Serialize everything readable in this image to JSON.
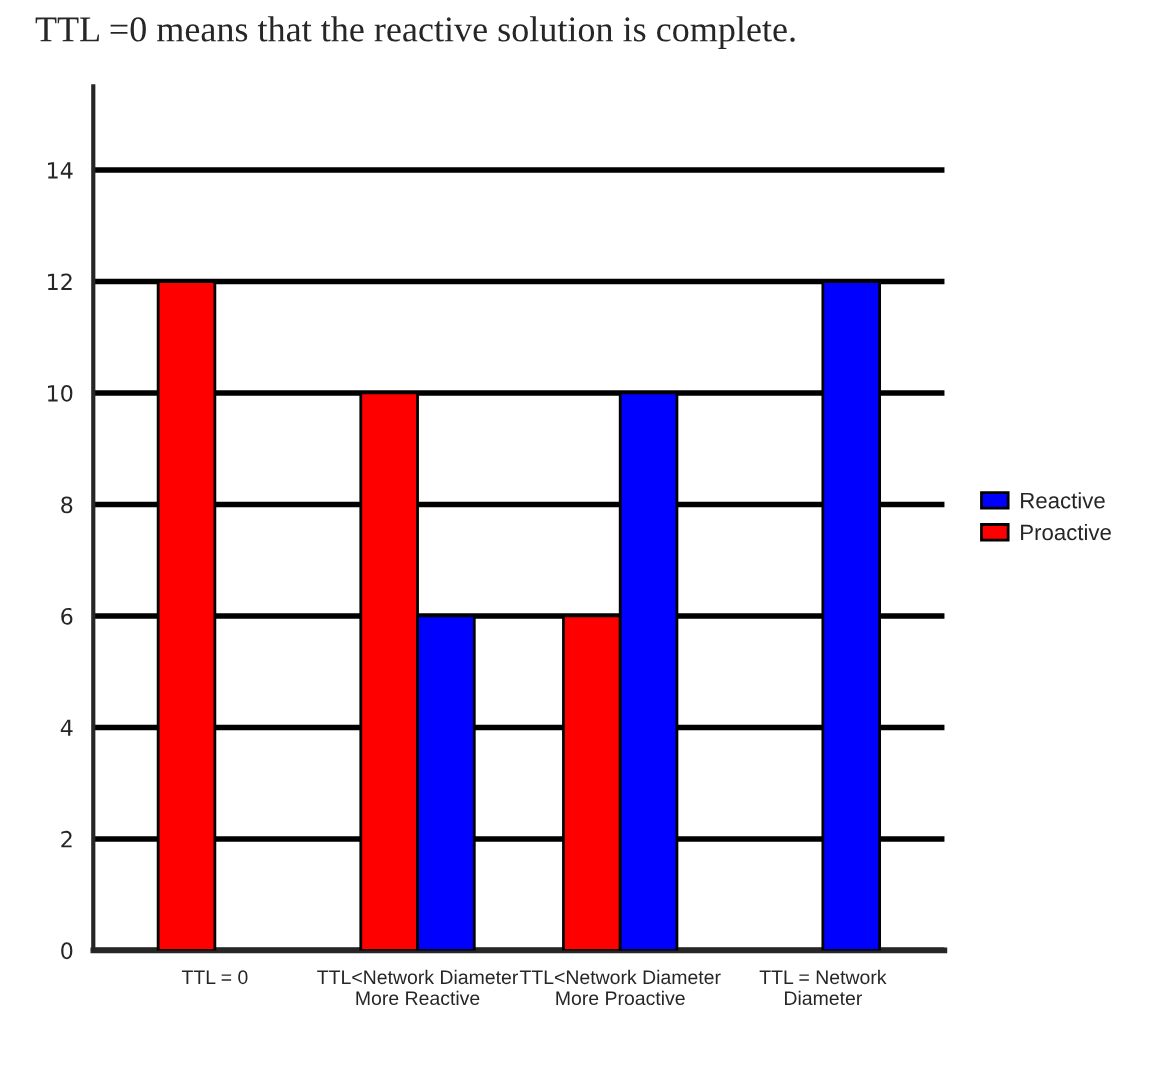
{
  "chart_data": {
    "type": "bar",
    "title": "TTL =0 means that the reactive solution is complete.",
    "categories": [
      "TTL = 0",
      "TTL<Network Diameter\nMore Reactive",
      "TTL<Network Diameter\nMore Proactive",
      "TTL = Network\nDiameter"
    ],
    "series": [
      {
        "name": "Proactive",
        "color": "#ff0000",
        "values": [
          12,
          10,
          6,
          null
        ]
      },
      {
        "name": "Reactive",
        "color": "#0000ff",
        "values": [
          null,
          6,
          10,
          12
        ]
      }
    ],
    "ylim": [
      0,
      15.5
    ],
    "yticks": [
      0,
      2,
      4,
      6,
      8,
      10,
      12,
      14
    ],
    "grid": "y",
    "legend": "right"
  }
}
